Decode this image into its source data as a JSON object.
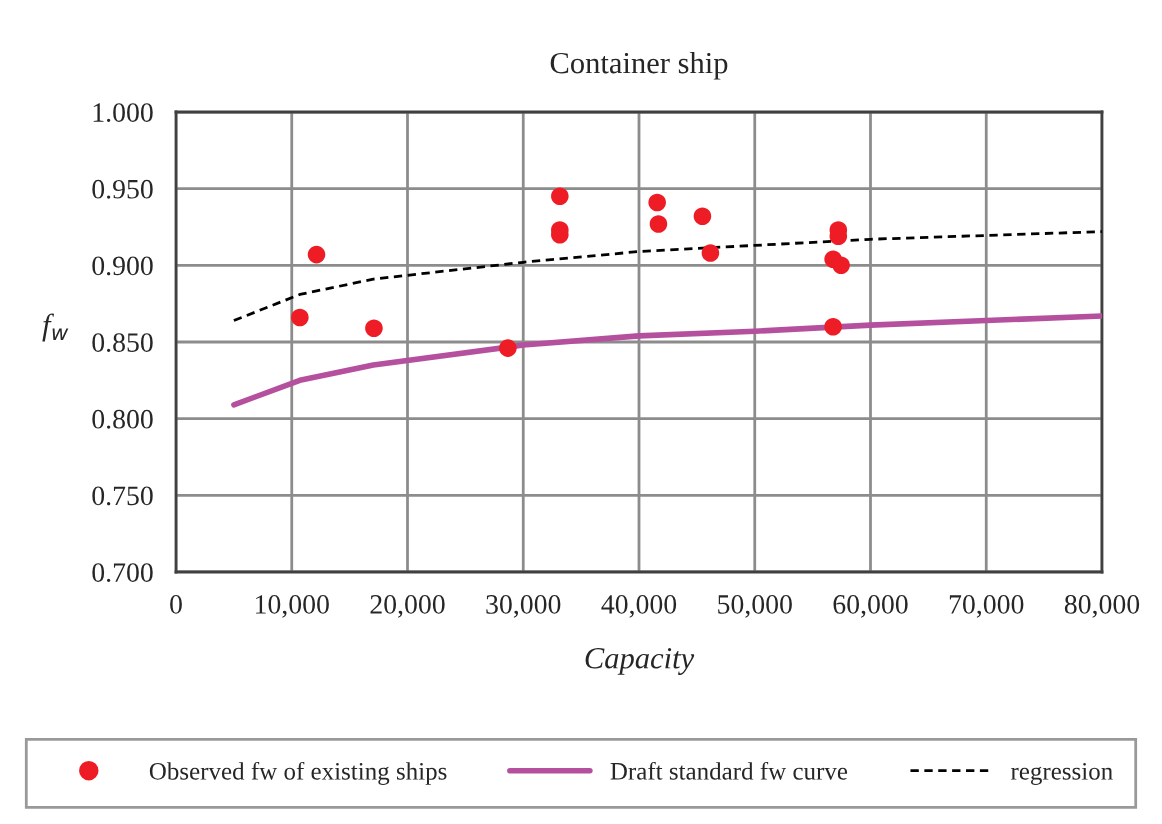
{
  "chart_data": {
    "type": "scatter",
    "title": "Container ship",
    "xlabel": "Capacity",
    "ylabel": "f$_{w}$",
    "series": [
      {
        "name": "Observed fw of existing ships",
        "color": "#ee1c25",
        "marker": "circle",
        "x": [
          12140,
          10700,
          17100,
          28670,
          33160,
          33160,
          33160,
          41570,
          41680,
          45480,
          46170,
          57220,
          57220,
          56770,
          57460,
          56770
        ],
        "values": [
          0.907,
          0.866,
          0.859,
          0.846,
          0.945,
          0.923,
          0.92,
          0.941,
          0.927,
          0.932,
          0.908,
          0.923,
          0.919,
          0.904,
          0.9,
          0.86
        ]
      },
      {
        "name": "Draft standard fw curve",
        "type": "line",
        "color": "#b5509f",
        "line_style": "solid",
        "x": [
          5000,
          10700,
          17050,
          30000,
          40000,
          50000,
          60000,
          70000,
          80000
        ],
        "values": [
          0.809,
          0.825,
          0.835,
          0.848,
          0.854,
          0.857,
          0.861,
          0.864,
          0.867
        ]
      },
      {
        "name": "regression",
        "type": "line",
        "color": "#000000",
        "line_style": "dashed",
        "x": [
          5000,
          10700,
          17050,
          30000,
          40000,
          50000,
          60000,
          80000
        ],
        "values": [
          0.864,
          0.881,
          0.891,
          0.902,
          0.909,
          0.913,
          0.917,
          0.922
        ]
      }
    ],
    "xlim": [
      0,
      80000
    ],
    "ylim": [
      0.7,
      1.0
    ],
    "xticks": [
      0,
      {
        "value": 10000,
        "label": "10,000"
      },
      {
        "value": 20000,
        "label": "20,000"
      },
      {
        "value": 30000,
        "label": "30,000"
      },
      {
        "value": 40000,
        "label": "40,000"
      },
      {
        "value": 50000,
        "label": "50,000"
      },
      {
        "value": 60000,
        "label": "60,000"
      },
      {
        "value": 70000,
        "label": "70,000"
      },
      {
        "value": 80000,
        "label": "80,000"
      }
    ],
    "yticks": [
      {
        "value": 0.7,
        "label": "0.700"
      },
      {
        "value": 0.75,
        "label": "0.750"
      },
      {
        "value": 0.8,
        "label": "0.800"
      },
      {
        "value": 0.85,
        "label": "0.850"
      },
      {
        "value": 0.9,
        "label": "0.900"
      },
      {
        "value": 0.95,
        "label": "0.950"
      },
      {
        "value": 1.0,
        "label": "1.000"
      }
    ],
    "grid": true,
    "legend": "bottom"
  }
}
